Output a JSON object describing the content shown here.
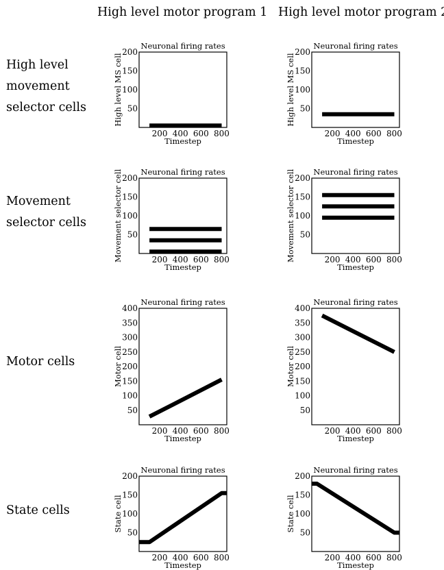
{
  "column_titles": [
    "High level motor program 1",
    "High level motor program 2"
  ],
  "row_labels": [
    [
      "High level",
      "movement",
      "selector cells"
    ],
    [
      "Movement",
      "selector cells"
    ],
    [
      "Motor cells"
    ],
    [
      "State cells"
    ]
  ],
  "chart_data": [
    {
      "type": "line",
      "title": "Neuronal firing rates",
      "xlabel": "Timestep",
      "ylabel": "High level MS cell",
      "xlim": [
        0,
        850
      ],
      "ylim": [
        0,
        200
      ],
      "xticks": [
        200,
        400,
        600,
        800
      ],
      "yticks": [
        50,
        100,
        150,
        200
      ],
      "series": [
        {
          "x": [
            100,
            800
          ],
          "y": [
            5,
            5
          ]
        }
      ]
    },
    {
      "type": "line",
      "title": "Neuronal firing rates",
      "xlabel": "Timestep",
      "ylabel": "High level MS cell",
      "xlim": [
        0,
        850
      ],
      "ylim": [
        0,
        200
      ],
      "xticks": [
        200,
        400,
        600,
        800
      ],
      "yticks": [
        50,
        100,
        150,
        200
      ],
      "series": [
        {
          "x": [
            100,
            800
          ],
          "y": [
            35,
            35
          ]
        }
      ]
    },
    {
      "type": "line",
      "title": "Neuronal firing rates",
      "xlabel": "Timestep",
      "ylabel": "Movement selector cell",
      "xlim": [
        0,
        850
      ],
      "ylim": [
        0,
        200
      ],
      "xticks": [
        200,
        400,
        600,
        800
      ],
      "yticks": [
        50,
        100,
        150,
        200
      ],
      "series": [
        {
          "x": [
            100,
            800
          ],
          "y": [
            5,
            5
          ]
        },
        {
          "x": [
            100,
            800
          ],
          "y": [
            35,
            35
          ]
        },
        {
          "x": [
            100,
            800
          ],
          "y": [
            65,
            65
          ]
        }
      ]
    },
    {
      "type": "line",
      "title": "Neuronal firing rates",
      "xlabel": "Timestep",
      "ylabel": "Movement selector cell",
      "xlim": [
        0,
        850
      ],
      "ylim": [
        0,
        200
      ],
      "xticks": [
        200,
        400,
        600,
        800
      ],
      "yticks": [
        50,
        100,
        150,
        200
      ],
      "series": [
        {
          "x": [
            100,
            800
          ],
          "y": [
            95,
            95
          ]
        },
        {
          "x": [
            100,
            800
          ],
          "y": [
            125,
            125
          ]
        },
        {
          "x": [
            100,
            800
          ],
          "y": [
            155,
            155
          ]
        }
      ]
    },
    {
      "type": "line",
      "title": "Neuronal firing rates",
      "xlabel": "Timestep",
      "ylabel": "Motor cell",
      "xlim": [
        0,
        850
      ],
      "ylim": [
        0,
        400
      ],
      "xticks": [
        200,
        400,
        600,
        800
      ],
      "yticks": [
        50,
        100,
        150,
        200,
        250,
        300,
        350,
        400
      ],
      "series": [
        {
          "x": [
            100,
            800
          ],
          "y": [
            28,
            155
          ]
        }
      ]
    },
    {
      "type": "line",
      "title": "Neuronal firing rates",
      "xlabel": "Timestep",
      "ylabel": "Motor cell",
      "xlim": [
        0,
        850
      ],
      "ylim": [
        0,
        400
      ],
      "xticks": [
        200,
        400,
        600,
        800
      ],
      "yticks": [
        50,
        100,
        150,
        200,
        250,
        300,
        350,
        400
      ],
      "series": [
        {
          "x": [
            100,
            800
          ],
          "y": [
            375,
            250
          ]
        }
      ]
    },
    {
      "type": "line",
      "title": "Neuronal firing rates",
      "xlabel": "Timestep",
      "ylabel": "State cell",
      "xlim": [
        0,
        850
      ],
      "ylim": [
        0,
        200
      ],
      "xticks": [
        200,
        400,
        600,
        800
      ],
      "yticks": [
        50,
        100,
        150,
        200
      ],
      "series": [
        {
          "x": [
            0,
            100,
            800,
            850
          ],
          "y": [
            25,
            25,
            155,
            155
          ]
        }
      ]
    },
    {
      "type": "line",
      "title": "Neuronal firing rates",
      "xlabel": "Timestep",
      "ylabel": "State cell",
      "xlim": [
        0,
        850
      ],
      "ylim": [
        0,
        200
      ],
      "xticks": [
        200,
        400,
        600,
        800
      ],
      "yticks": [
        50,
        100,
        150,
        200
      ],
      "series": [
        {
          "x": [
            0,
            50,
            800,
            850
          ],
          "y": [
            180,
            180,
            50,
            50
          ]
        }
      ]
    }
  ]
}
